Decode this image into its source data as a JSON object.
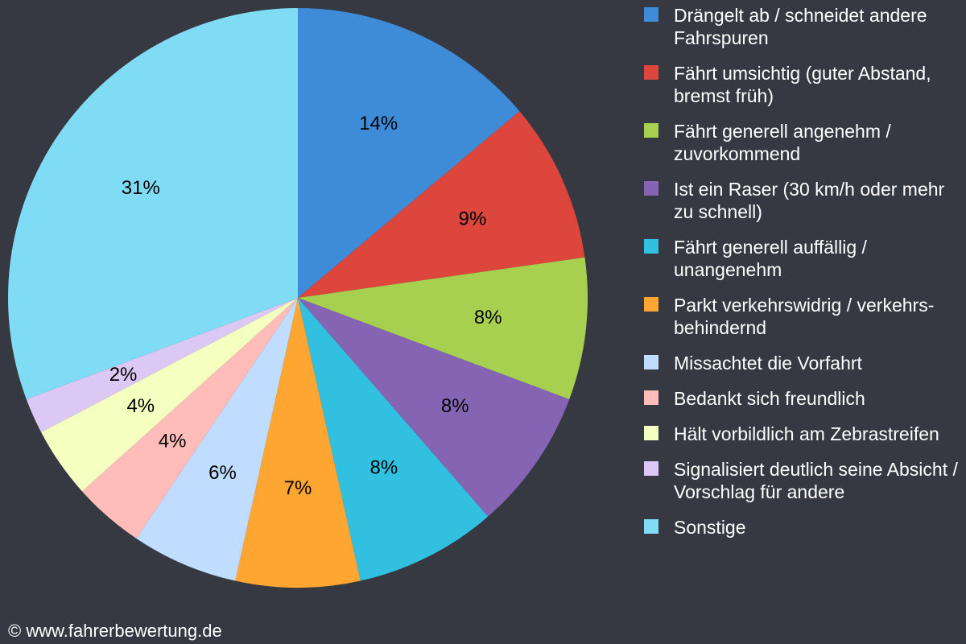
{
  "chart_data": {
    "type": "pie",
    "categories": [
      "Drängelt ab / schneidet andere Fahrspuren",
      "Fährt umsichtig (guter Abstand, bremst früh)",
      "Fährt generell angenehm / zuvorkommend",
      "Ist ein Raser (30 km/h oder mehr zu schnell)",
      "Fährt generell auffällig / unangenehm",
      "Parkt verkehrswidrig / verkehrs-behindernd",
      "Missachtet die Vorfahrt",
      "Bedankt sich freundlich",
      "Hält vorbildlich am Zebrastreifen",
      "Signalisiert deutlich seine Absicht / Vorschlag für andere",
      "Sonstige"
    ],
    "values": [
      14,
      9,
      8,
      8,
      8,
      7,
      6,
      4,
      4,
      2,
      31
    ],
    "value_labels": [
      "14%",
      "9%",
      "8%",
      "8%",
      "8%",
      "7%",
      "6%",
      "4%",
      "4%",
      "2%",
      "31%"
    ],
    "colors": [
      "#3e8bd8",
      "#dc463c",
      "#a8d050",
      "#8664b4",
      "#32c0e0",
      "#ffa632",
      "#c0dcff",
      "#ffbcb8",
      "#f4ffc0",
      "#dcc8f4",
      "#80dcf4"
    ],
    "legend": "right"
  },
  "footer": "© www.fahrerbewertung.de"
}
